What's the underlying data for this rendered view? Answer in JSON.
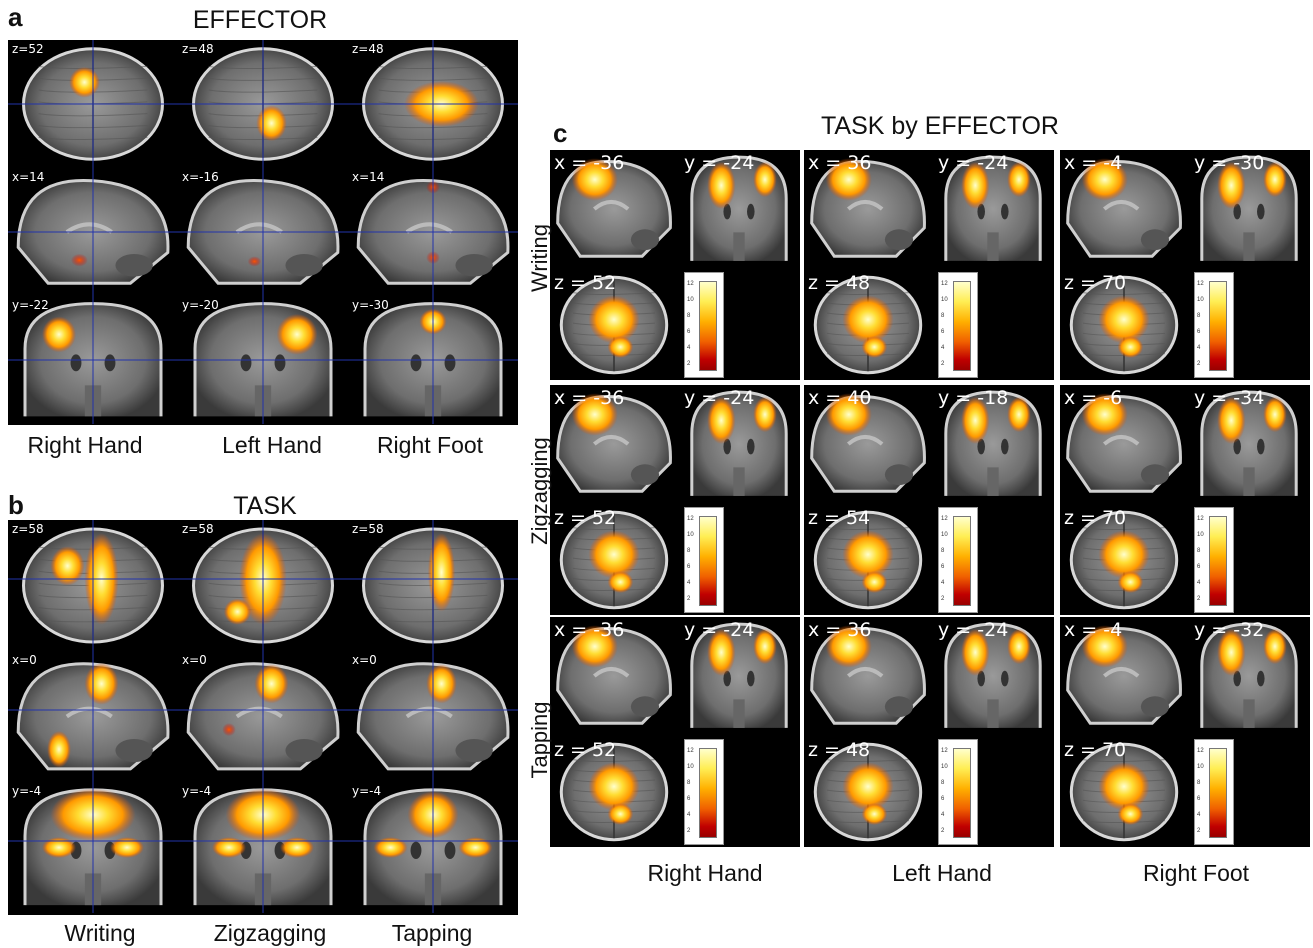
{
  "panel_a": {
    "letter": "a",
    "title": "EFFECTOR",
    "columns": [
      "Right Hand",
      "Left Hand",
      "Right Foot"
    ],
    "slices": [
      [
        "z=52",
        "z=48",
        "z=48"
      ],
      [
        "x=14",
        "x=-16",
        "x=14"
      ],
      [
        "y=-22",
        "y=-20",
        "y=-30"
      ]
    ]
  },
  "panel_b": {
    "letter": "b",
    "title": "TASK",
    "columns": [
      "Writing",
      "Zigzagging",
      "Tapping"
    ],
    "slices": [
      [
        "z=58",
        "z=58",
        "z=58"
      ],
      [
        "x=0",
        "x=0",
        "x=0"
      ],
      [
        "y=-4",
        "y=-4",
        "y=-4"
      ]
    ]
  },
  "panel_c": {
    "letter": "c",
    "title": "TASK by EFFECTOR",
    "columns": [
      "Right Hand",
      "Left Hand",
      "Right Foot"
    ],
    "rows": [
      "Writing",
      "Zigzagging",
      "Tapping"
    ],
    "cells": [
      [
        {
          "sag": "x = -36",
          "cor": "y = -24",
          "ax": "z = 52"
        },
        {
          "sag": "x = 36",
          "cor": "y = -24",
          "ax": "z = 48"
        },
        {
          "sag": "x = -4",
          "cor": "y = -30",
          "ax": "z = 70"
        }
      ],
      [
        {
          "sag": "x = -36",
          "cor": "y = -24",
          "ax": "z = 52"
        },
        {
          "sag": "x = 40",
          "cor": "y = -18",
          "ax": "z = 54"
        },
        {
          "sag": "x = -6",
          "cor": "y = -34",
          "ax": "z = 70"
        }
      ],
      [
        {
          "sag": "x = -36",
          "cor": "y = -24",
          "ax": "z = 52"
        },
        {
          "sag": "x = 36",
          "cor": "y = -24",
          "ax": "z = 48"
        },
        {
          "sag": "x = -4",
          "cor": "y = -32",
          "ax": "z = 70"
        }
      ]
    ]
  },
  "colorbar": {
    "ticks": [
      "12",
      "10",
      "8",
      "6",
      "4",
      "2"
    ]
  },
  "colors": {
    "background": "#000000",
    "activation_high": "#ffff99",
    "activation_mid": "#ffa500",
    "activation_low": "#cc2200",
    "crosshair": "#2233aa"
  }
}
